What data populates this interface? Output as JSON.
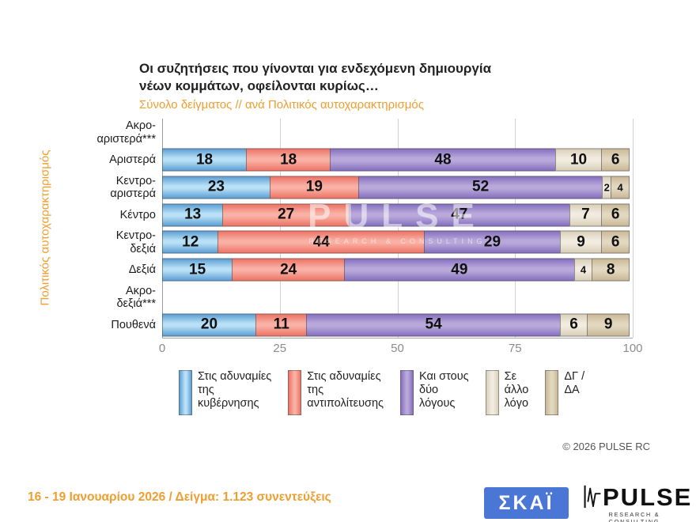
{
  "accent_orange": "#EF9E2F",
  "header": {
    "title": "Οι συζητήσεις που γίνονται για ενδεχόμενη δημιουργία\nνέων κομμάτων, οφείλονται κυρίως…",
    "subtitle": "Σύνολο δείγματος // ανά Πολιτικός αυτοχαρακτηρισμός"
  },
  "watermark": {
    "line1": "PULSE",
    "line2": "RESEARCH & CONSULTING"
  },
  "chart_data": {
    "type": "bar",
    "orientation": "horizontal",
    "stacked": true,
    "ylabel": "Πολιτικός αυτοχαρακτηρισμός",
    "xlim": [
      0,
      100
    ],
    "xticks": [
      0,
      25,
      50,
      75,
      100
    ],
    "grid": true,
    "legend_position": "bottom",
    "categories": [
      "Ακρο-\nαριστερά***",
      "Αριστερά",
      "Κεντρο-\nαριστερά",
      "Κέντρο",
      "Κεντρο-\nδεξιά",
      "Δεξιά",
      "Ακρο-\nδεξιά***",
      "Πουθενά"
    ],
    "series": [
      {
        "name": "Στις αδυναμίες της κυβέρνησης",
        "legend_label": "Στις αδυναμίες\nτης\nκυβέρνησης",
        "color": "#5D9FD4",
        "color_light": "#B8E0F6",
        "values": [
          null,
          18,
          23,
          13,
          12,
          15,
          null,
          20
        ]
      },
      {
        "name": "Στις αδυναμίες της αντιπολίτευσης",
        "legend_label": "Στις αδυναμίες\nτης\nαντιπολίτευσης",
        "color": "#EC7465",
        "color_light": "#F9B0A5",
        "values": [
          null,
          18,
          19,
          27,
          44,
          24,
          null,
          11
        ]
      },
      {
        "name": "Και στους δύο λόγους",
        "legend_label": "Και στους\nδύο\nλόγους",
        "color": "#8670BE",
        "color_light": "#B9A9DB",
        "values": [
          null,
          48,
          52,
          47,
          29,
          49,
          null,
          54
        ]
      },
      {
        "name": "Σε άλλο λόγο",
        "legend_label": "Σε\nάλλο\nλόγο",
        "color": "#D9CFBA",
        "color_light": "#F2ECE0",
        "values": [
          null,
          10,
          2,
          7,
          9,
          4,
          null,
          6
        ]
      },
      {
        "name": "ΔΓ / ΔΑ",
        "legend_label": "ΔΓ /\nΔΑ",
        "color": "#C9B896",
        "color_light": "#E2D8C0",
        "values": [
          null,
          6,
          4,
          6,
          6,
          8,
          null,
          9
        ]
      }
    ]
  },
  "footer": {
    "copyright": "©  2026  PULSE RC",
    "note": "16 - 19 Ιανουαρίου 2026  /  Δείγμα:  1.123 συνεντεύξεις",
    "skai_logo": "ΣΚΑΪ",
    "pulse_logo": "PULSE",
    "pulse_tagline": "RESEARCH & CONSULTING"
  }
}
